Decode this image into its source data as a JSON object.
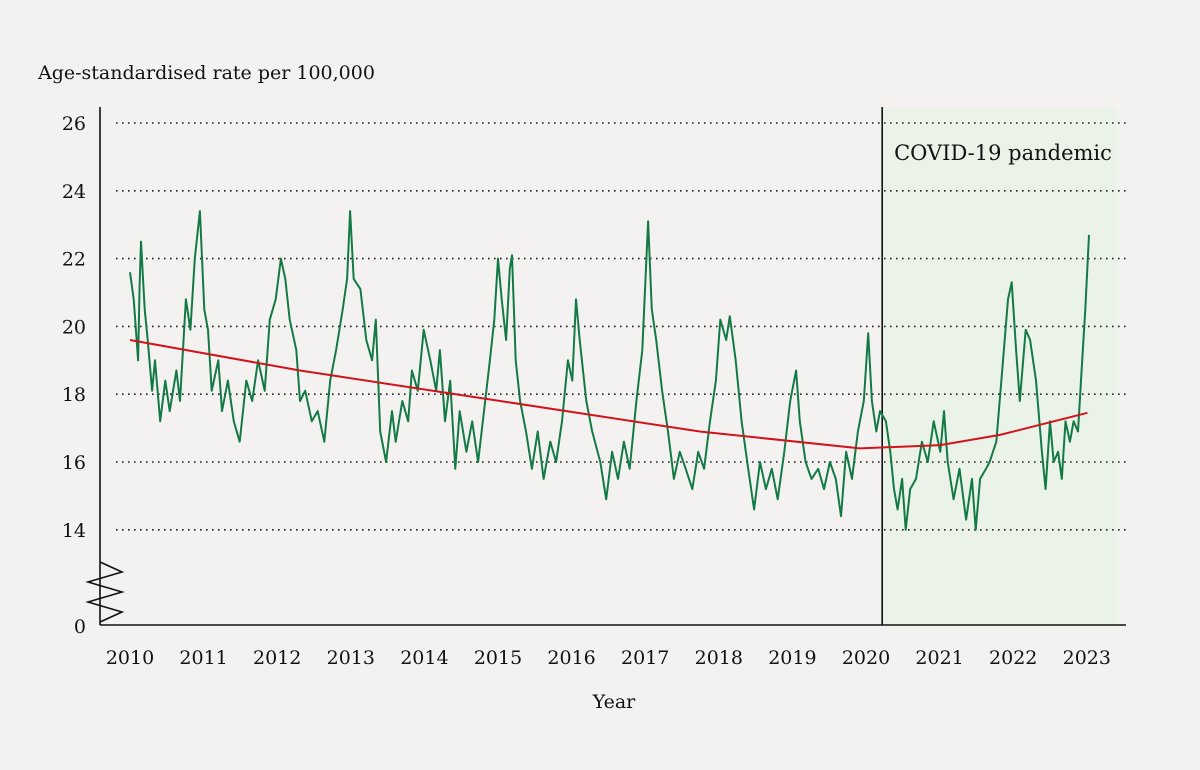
{
  "chart_data": {
    "type": "line",
    "ylabel": "Age-standardised rate per 100,000",
    "xlabel": "Year",
    "annotation": "COVID-19 pandemic",
    "shaded_region": {
      "from": 2020.22,
      "to": 2023.41,
      "color": "#ebf3e8"
    },
    "ylim": [
      14,
      26
    ],
    "y_axis_break": true,
    "yticks": [
      26,
      24,
      22,
      20,
      18,
      16,
      14
    ],
    "ytick_zero_label": "0",
    "xticks": [
      2010,
      2011,
      2012,
      2013,
      2014,
      2015,
      2016,
      2017,
      2018,
      2019,
      2020,
      2021,
      2022,
      2023
    ],
    "xlim": [
      2009.6,
      2023.5
    ],
    "grid": "horizontal dotted",
    "colors": {
      "series": "#137a45",
      "trend": "#d0141c",
      "axis": "#111111"
    },
    "series": [
      {
        "key": "weekly",
        "points": [
          [
            2010.0,
            21.6
          ],
          [
            2010.05,
            20.8
          ],
          [
            2010.11,
            19.0
          ],
          [
            2010.13,
            21.2
          ],
          [
            2010.15,
            22.5
          ],
          [
            2010.2,
            20.5
          ],
          [
            2010.24,
            19.6
          ],
          [
            2010.3,
            18.1
          ],
          [
            2010.34,
            19.0
          ],
          [
            2010.41,
            17.2
          ],
          [
            2010.48,
            18.4
          ],
          [
            2010.54,
            17.5
          ],
          [
            2010.63,
            18.7
          ],
          [
            2010.68,
            17.8
          ],
          [
            2010.76,
            20.8
          ],
          [
            2010.82,
            19.9
          ],
          [
            2010.88,
            22.0
          ],
          [
            2010.95,
            23.4
          ],
          [
            2011.01,
            20.5
          ],
          [
            2011.06,
            19.9
          ],
          [
            2011.11,
            18.1
          ],
          [
            2011.2,
            19.0
          ],
          [
            2011.25,
            17.5
          ],
          [
            2011.33,
            18.4
          ],
          [
            2011.41,
            17.2
          ],
          [
            2011.49,
            16.6
          ],
          [
            2011.58,
            18.4
          ],
          [
            2011.66,
            17.8
          ],
          [
            2011.74,
            19.0
          ],
          [
            2011.83,
            18.1
          ],
          [
            2011.9,
            20.2
          ],
          [
            2011.98,
            20.8
          ],
          [
            2012.05,
            22.0
          ],
          [
            2012.11,
            21.4
          ],
          [
            2012.17,
            20.2
          ],
          [
            2012.26,
            19.3
          ],
          [
            2012.31,
            17.8
          ],
          [
            2012.38,
            18.1
          ],
          [
            2012.47,
            17.2
          ],
          [
            2012.55,
            17.5
          ],
          [
            2012.64,
            16.6
          ],
          [
            2012.72,
            18.4
          ],
          [
            2012.8,
            19.3
          ],
          [
            2012.89,
            20.5
          ],
          [
            2012.95,
            21.4
          ],
          [
            2012.99,
            23.4
          ],
          [
            2013.04,
            21.4
          ],
          [
            2013.13,
            21.1
          ],
          [
            2013.21,
            19.6
          ],
          [
            2013.29,
            19.0
          ],
          [
            2013.34,
            20.2
          ],
          [
            2013.4,
            16.9
          ],
          [
            2013.48,
            16.0
          ],
          [
            2013.56,
            17.5
          ],
          [
            2013.61,
            16.6
          ],
          [
            2013.7,
            17.8
          ],
          [
            2013.78,
            17.2
          ],
          [
            2013.83,
            18.7
          ],
          [
            2013.91,
            18.1
          ],
          [
            2013.99,
            19.9
          ],
          [
            2014.08,
            19.0
          ],
          [
            2014.16,
            18.1
          ],
          [
            2014.21,
            19.3
          ],
          [
            2014.28,
            17.2
          ],
          [
            2014.35,
            18.4
          ],
          [
            2014.42,
            15.8
          ],
          [
            2014.48,
            17.5
          ],
          [
            2014.57,
            16.3
          ],
          [
            2014.65,
            17.2
          ],
          [
            2014.73,
            16.0
          ],
          [
            2014.81,
            17.5
          ],
          [
            2014.89,
            19.0
          ],
          [
            2014.95,
            20.2
          ],
          [
            2015.0,
            22.0
          ],
          [
            2015.05,
            20.8
          ],
          [
            2015.11,
            19.6
          ],
          [
            2015.16,
            21.7
          ],
          [
            2015.19,
            22.1
          ],
          [
            2015.24,
            19.0
          ],
          [
            2015.3,
            17.8
          ],
          [
            2015.38,
            16.9
          ],
          [
            2015.46,
            15.8
          ],
          [
            2015.54,
            16.9
          ],
          [
            2015.62,
            15.5
          ],
          [
            2015.71,
            16.6
          ],
          [
            2015.79,
            16.0
          ],
          [
            2015.87,
            17.2
          ],
          [
            2015.95,
            19.0
          ],
          [
            2016.01,
            18.4
          ],
          [
            2016.06,
            20.8
          ],
          [
            2016.11,
            19.6
          ],
          [
            2016.2,
            17.8
          ],
          [
            2016.28,
            16.9
          ],
          [
            2016.39,
            16.0
          ],
          [
            2016.47,
            14.9
          ],
          [
            2016.55,
            16.3
          ],
          [
            2016.63,
            15.5
          ],
          [
            2016.71,
            16.6
          ],
          [
            2016.79,
            15.8
          ],
          [
            2016.88,
            17.8
          ],
          [
            2016.96,
            19.3
          ],
          [
            2017.04,
            23.1
          ],
          [
            2017.09,
            20.5
          ],
          [
            2017.15,
            19.6
          ],
          [
            2017.23,
            18.1
          ],
          [
            2017.31,
            16.9
          ],
          [
            2017.39,
            15.5
          ],
          [
            2017.47,
            16.3
          ],
          [
            2017.55,
            15.8
          ],
          [
            2017.64,
            15.2
          ],
          [
            2017.72,
            16.3
          ],
          [
            2017.8,
            15.8
          ],
          [
            2017.88,
            17.2
          ],
          [
            2017.96,
            18.4
          ],
          [
            2018.02,
            20.2
          ],
          [
            2018.1,
            19.6
          ],
          [
            2018.15,
            20.3
          ],
          [
            2018.23,
            19.0
          ],
          [
            2018.31,
            17.2
          ],
          [
            2018.4,
            15.8
          ],
          [
            2018.48,
            14.6
          ],
          [
            2018.56,
            16.0
          ],
          [
            2018.64,
            15.2
          ],
          [
            2018.72,
            15.8
          ],
          [
            2018.8,
            14.9
          ],
          [
            2018.89,
            16.3
          ],
          [
            2018.97,
            17.8
          ],
          [
            2019.05,
            18.7
          ],
          [
            2019.1,
            17.2
          ],
          [
            2019.18,
            16.0
          ],
          [
            2019.26,
            15.5
          ],
          [
            2019.35,
            15.8
          ],
          [
            2019.43,
            15.2
          ],
          [
            2019.51,
            16.0
          ],
          [
            2019.59,
            15.5
          ],
          [
            2019.66,
            14.4
          ],
          [
            2019.73,
            16.3
          ],
          [
            2019.81,
            15.5
          ],
          [
            2019.89,
            16.9
          ],
          [
            2019.97,
            17.8
          ],
          [
            2020.03,
            19.8
          ],
          [
            2020.08,
            17.8
          ],
          [
            2020.14,
            16.9
          ],
          [
            2020.19,
            17.5
          ],
          [
            2020.27,
            17.2
          ],
          [
            2020.33,
            16.3
          ],
          [
            2020.38,
            15.2
          ],
          [
            2020.43,
            14.6
          ],
          [
            2020.49,
            15.5
          ],
          [
            2020.54,
            14.0
          ],
          [
            2020.6,
            15.2
          ],
          [
            2020.68,
            15.5
          ],
          [
            2020.76,
            16.6
          ],
          [
            2020.84,
            16.0
          ],
          [
            2020.92,
            17.2
          ],
          [
            2021.01,
            16.3
          ],
          [
            2021.06,
            17.5
          ],
          [
            2021.11,
            16.0
          ],
          [
            2021.19,
            14.9
          ],
          [
            2021.27,
            15.8
          ],
          [
            2021.36,
            14.3
          ],
          [
            2021.44,
            15.5
          ],
          [
            2021.49,
            14.0
          ],
          [
            2021.55,
            15.5
          ],
          [
            2021.63,
            15.8
          ],
          [
            2021.68,
            16.0
          ],
          [
            2021.77,
            16.6
          ],
          [
            2021.85,
            18.7
          ],
          [
            2021.93,
            20.8
          ],
          [
            2021.98,
            21.3
          ],
          [
            2022.04,
            19.3
          ],
          [
            2022.09,
            17.8
          ],
          [
            2022.17,
            19.9
          ],
          [
            2022.23,
            19.6
          ],
          [
            2022.31,
            18.4
          ],
          [
            2022.39,
            16.3
          ],
          [
            2022.44,
            15.2
          ],
          [
            2022.5,
            17.2
          ],
          [
            2022.55,
            16.0
          ],
          [
            2022.61,
            16.3
          ],
          [
            2022.66,
            15.5
          ],
          [
            2022.71,
            17.2
          ],
          [
            2022.77,
            16.6
          ],
          [
            2022.82,
            17.2
          ],
          [
            2022.88,
            16.9
          ],
          [
            2022.93,
            18.7
          ],
          [
            2022.98,
            20.5
          ],
          [
            2023.03,
            22.7
          ]
        ]
      },
      {
        "key": "trend",
        "points": [
          [
            2010.0,
            19.6
          ],
          [
            2012.31,
            18.7
          ],
          [
            2015.03,
            17.8
          ],
          [
            2017.74,
            16.9
          ],
          [
            2019.92,
            16.4
          ],
          [
            2021.01,
            16.5
          ],
          [
            2021.82,
            16.8
          ],
          [
            2022.37,
            17.1
          ],
          [
            2023.01,
            17.45
          ]
        ]
      }
    ]
  }
}
